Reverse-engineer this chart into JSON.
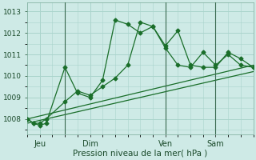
{
  "xlabel": "Pression niveau de la mer( hPa )",
  "background_color": "#ceeae6",
  "grid_color": "#aad4cc",
  "line_color": "#1a6e2a",
  "ylim": [
    1007.3,
    1013.4
  ],
  "xlim": [
    0,
    108
  ],
  "yticks": [
    1008,
    1009,
    1010,
    1011,
    1012,
    1013
  ],
  "xtick_positions": [
    6,
    30,
    66,
    90
  ],
  "xtick_labels": [
    "Jeu",
    "Dim",
    "Ven",
    "Sam"
  ],
  "vlines": [
    18,
    66,
    90
  ],
  "series1_x": [
    0,
    3,
    6,
    9,
    18,
    24,
    30,
    36,
    42,
    48,
    54,
    60,
    66,
    72,
    78,
    84,
    90,
    96,
    102,
    108
  ],
  "series1_y": [
    1008.0,
    1007.8,
    1007.7,
    1007.8,
    1010.4,
    1009.2,
    1009.0,
    1009.8,
    1012.6,
    1012.4,
    1012.0,
    1012.3,
    1011.3,
    1010.5,
    1010.4,
    1011.1,
    1010.5,
    1011.0,
    1010.5,
    1010.4
  ],
  "series2_x": [
    0,
    3,
    6,
    9,
    18,
    24,
    30,
    36,
    42,
    48,
    54,
    60,
    66,
    72,
    78,
    84,
    90,
    96,
    102,
    108
  ],
  "series2_y": [
    1008.0,
    1007.8,
    1007.8,
    1008.0,
    1008.8,
    1009.3,
    1009.1,
    1009.5,
    1009.9,
    1010.5,
    1012.5,
    1012.3,
    1011.4,
    1012.1,
    1010.5,
    1010.4,
    1010.4,
    1011.1,
    1010.8,
    1010.4
  ],
  "trend1_x": [
    0,
    108
  ],
  "trend1_y": [
    1008.0,
    1010.5
  ],
  "trend2_x": [
    0,
    108
  ],
  "trend2_y": [
    1007.8,
    1010.2
  ]
}
